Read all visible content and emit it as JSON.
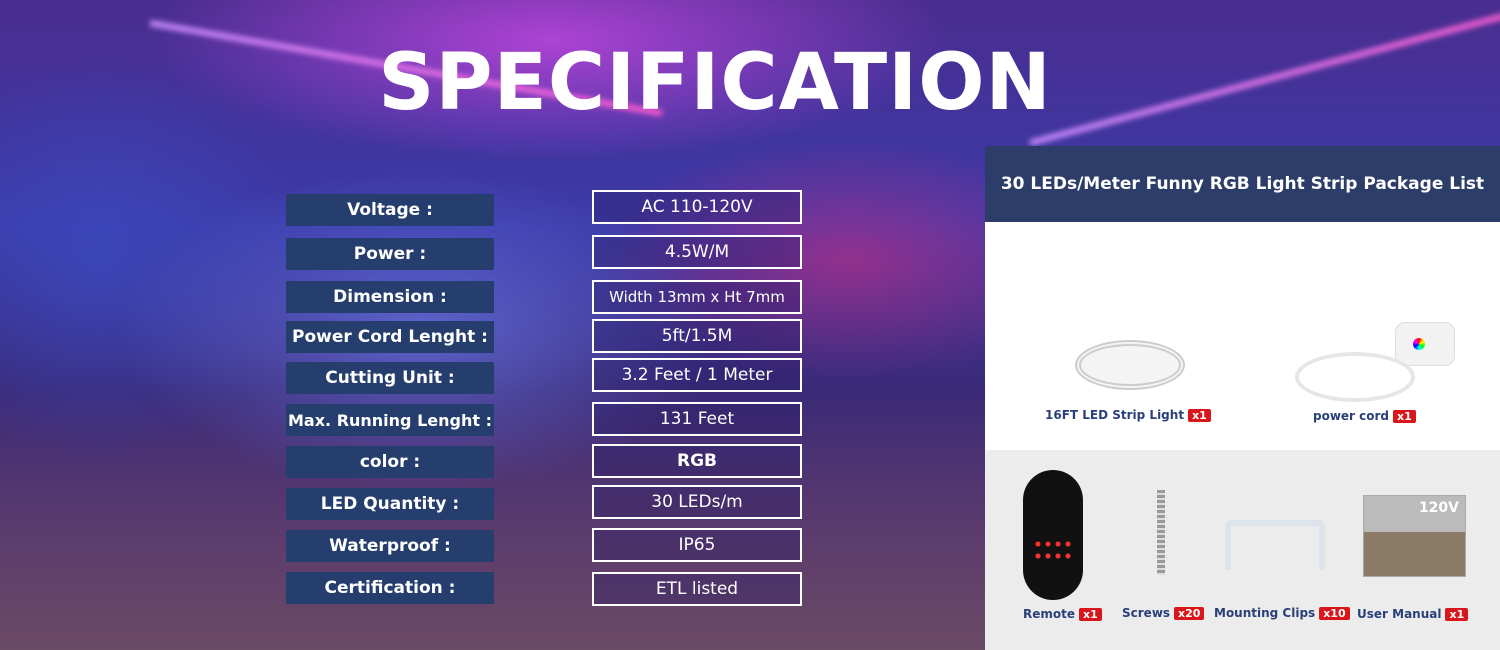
{
  "title": "SPECIFICATION",
  "specs": [
    {
      "label": "Voltage :",
      "value": "AC 110-120V"
    },
    {
      "label": "Power :",
      "value": "4.5W/M"
    },
    {
      "label": "Dimension :",
      "value": "Width 13mm x Ht 7mm"
    },
    {
      "label": "Power Cord Lenght :",
      "value": "5ft/1.5M"
    },
    {
      "label": "Cutting Unit :",
      "value": "3.2 Feet / 1 Meter"
    },
    {
      "label": "Max. Running Lenght :",
      "value": "131 Feet"
    },
    {
      "label": "color :",
      "value": "RGB"
    },
    {
      "label": "LED Quantity :",
      "value": "30 LEDs/m"
    },
    {
      "label": "Waterproof :",
      "value": "IP65"
    },
    {
      "label": "Certification :",
      "value": "ETL listed"
    }
  ],
  "package": {
    "title": "30 LEDs/Meter Funny RGB Light Strip Package List",
    "items": [
      {
        "name": "16FT LED Strip Light",
        "qty": "x1"
      },
      {
        "name": "power cord",
        "qty": "x1"
      },
      {
        "name": "Remote",
        "qty": "x1"
      },
      {
        "name": "Screws",
        "qty": "x20"
      },
      {
        "name": "Mounting Clips",
        "qty": "x10"
      },
      {
        "name": "User Manual",
        "qty": "x1",
        "image_text": "120V"
      }
    ]
  },
  "colors": {
    "label_bg": "#253e6e",
    "badge": "#d8161b",
    "panel_header": "#2c3d6a"
  }
}
